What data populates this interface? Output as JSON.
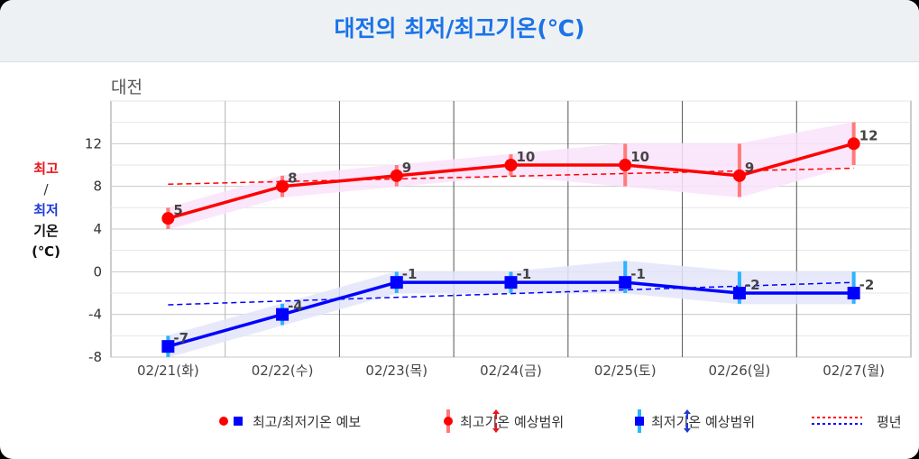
{
  "header": {
    "title": "대전의 최저/최고기온(℃)"
  },
  "city": "대전",
  "y_axis_label": {
    "high": "최고",
    "sep": "/",
    "low": "최저",
    "rest1": "기온",
    "rest2": "(℃)"
  },
  "legend": {
    "forecast": "최고/최저기온 예보",
    "high_range": "최고기온 예상범위",
    "low_range": "최저기온 예상범위",
    "normal": "평년"
  },
  "colors": {
    "high": "#ff0000",
    "low": "#0000ff",
    "high_band": "#fbe3fb",
    "low_band": "#e3e6fb",
    "high_range_bar": "#ff7a7a",
    "low_range_bar": "#2ab4ff"
  },
  "chart_data": {
    "type": "line",
    "categories": [
      "02/21(화)",
      "02/22(수)",
      "02/23(목)",
      "02/24(금)",
      "02/25(토)",
      "02/26(일)",
      "02/27(월)"
    ],
    "ylim": [
      -8,
      16
    ],
    "yticks": [
      -8,
      -4,
      0,
      4,
      8,
      12
    ],
    "series": [
      {
        "name": "최고기온",
        "values": [
          5,
          8,
          9,
          10,
          10,
          9,
          12
        ],
        "range_low": [
          4,
          7,
          8,
          9,
          8,
          7,
          10
        ],
        "range_high": [
          6,
          9,
          10,
          11,
          12,
          12,
          14
        ],
        "normal": [
          8.2,
          8.5,
          8.8,
          9.1,
          9.3,
          9.5,
          9.7
        ]
      },
      {
        "name": "최저기온",
        "values": [
          -7,
          -4,
          -1,
          -1,
          -1,
          -2,
          -2
        ],
        "range_low": [
          -8,
          -5,
          -2,
          -2,
          -2,
          -3,
          -3
        ],
        "range_high": [
          -6,
          -3,
          0,
          0,
          1,
          0,
          0
        ],
        "normal": [
          -3.1,
          -2.8,
          -2.4,
          -2.1,
          -1.8,
          -1.4,
          -1.0
        ]
      }
    ]
  }
}
